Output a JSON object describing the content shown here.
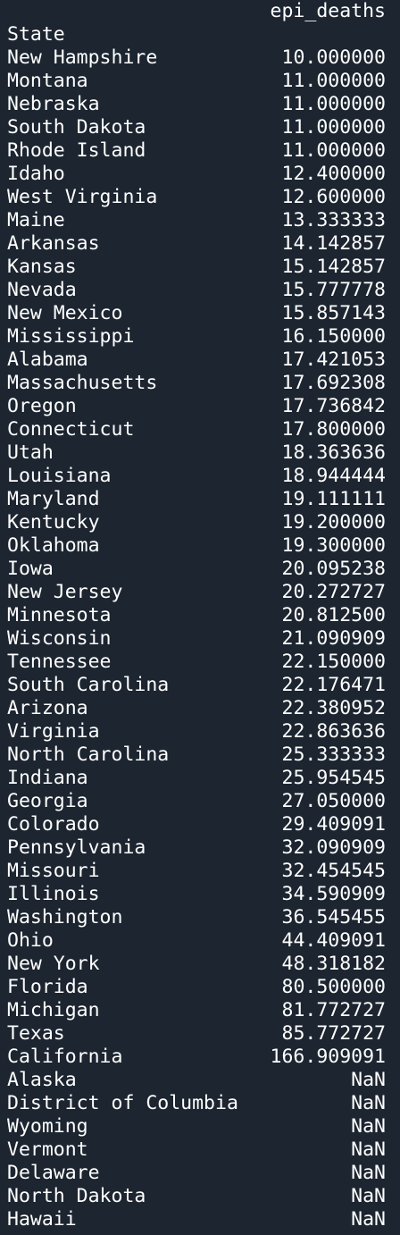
{
  "column_header": "epi_deaths",
  "index_name": "State",
  "rows": [
    {
      "state": "New Hampshire",
      "value": "10.000000"
    },
    {
      "state": "Montana",
      "value": "11.000000"
    },
    {
      "state": "Nebraska",
      "value": "11.000000"
    },
    {
      "state": "South Dakota",
      "value": "11.000000"
    },
    {
      "state": "Rhode Island",
      "value": "11.000000"
    },
    {
      "state": "Idaho",
      "value": "12.400000"
    },
    {
      "state": "West Virginia",
      "value": "12.600000"
    },
    {
      "state": "Maine",
      "value": "13.333333"
    },
    {
      "state": "Arkansas",
      "value": "14.142857"
    },
    {
      "state": "Kansas",
      "value": "15.142857"
    },
    {
      "state": "Nevada",
      "value": "15.777778"
    },
    {
      "state": "New Mexico",
      "value": "15.857143"
    },
    {
      "state": "Mississippi",
      "value": "16.150000"
    },
    {
      "state": "Alabama",
      "value": "17.421053"
    },
    {
      "state": "Massachusetts",
      "value": "17.692308"
    },
    {
      "state": "Oregon",
      "value": "17.736842"
    },
    {
      "state": "Connecticut",
      "value": "17.800000"
    },
    {
      "state": "Utah",
      "value": "18.363636"
    },
    {
      "state": "Louisiana",
      "value": "18.944444"
    },
    {
      "state": "Maryland",
      "value": "19.111111"
    },
    {
      "state": "Kentucky",
      "value": "19.200000"
    },
    {
      "state": "Oklahoma",
      "value": "19.300000"
    },
    {
      "state": "Iowa",
      "value": "20.095238"
    },
    {
      "state": "New Jersey",
      "value": "20.272727"
    },
    {
      "state": "Minnesota",
      "value": "20.812500"
    },
    {
      "state": "Wisconsin",
      "value": "21.090909"
    },
    {
      "state": "Tennessee",
      "value": "22.150000"
    },
    {
      "state": "South Carolina",
      "value": "22.176471"
    },
    {
      "state": "Arizona",
      "value": "22.380952"
    },
    {
      "state": "Virginia",
      "value": "22.863636"
    },
    {
      "state": "North Carolina",
      "value": "25.333333"
    },
    {
      "state": "Indiana",
      "value": "25.954545"
    },
    {
      "state": "Georgia",
      "value": "27.050000"
    },
    {
      "state": "Colorado",
      "value": "29.409091"
    },
    {
      "state": "Pennsylvania",
      "value": "32.090909"
    },
    {
      "state": "Missouri",
      "value": "32.454545"
    },
    {
      "state": "Illinois",
      "value": "34.590909"
    },
    {
      "state": "Washington",
      "value": "36.545455"
    },
    {
      "state": "Ohio",
      "value": "44.409091"
    },
    {
      "state": "New York",
      "value": "48.318182"
    },
    {
      "state": "Florida",
      "value": "80.500000"
    },
    {
      "state": "Michigan",
      "value": "81.772727"
    },
    {
      "state": "Texas",
      "value": "85.772727"
    },
    {
      "state": "California",
      "value": "166.909091"
    },
    {
      "state": "Alaska",
      "value": "NaN"
    },
    {
      "state": "District of Columbia",
      "value": "NaN"
    },
    {
      "state": "Wyoming",
      "value": "NaN"
    },
    {
      "state": "Vermont",
      "value": "NaN"
    },
    {
      "state": "Delaware",
      "value": "NaN"
    },
    {
      "state": "North Dakota",
      "value": "NaN"
    },
    {
      "state": "Hawaii",
      "value": "NaN"
    }
  ]
}
